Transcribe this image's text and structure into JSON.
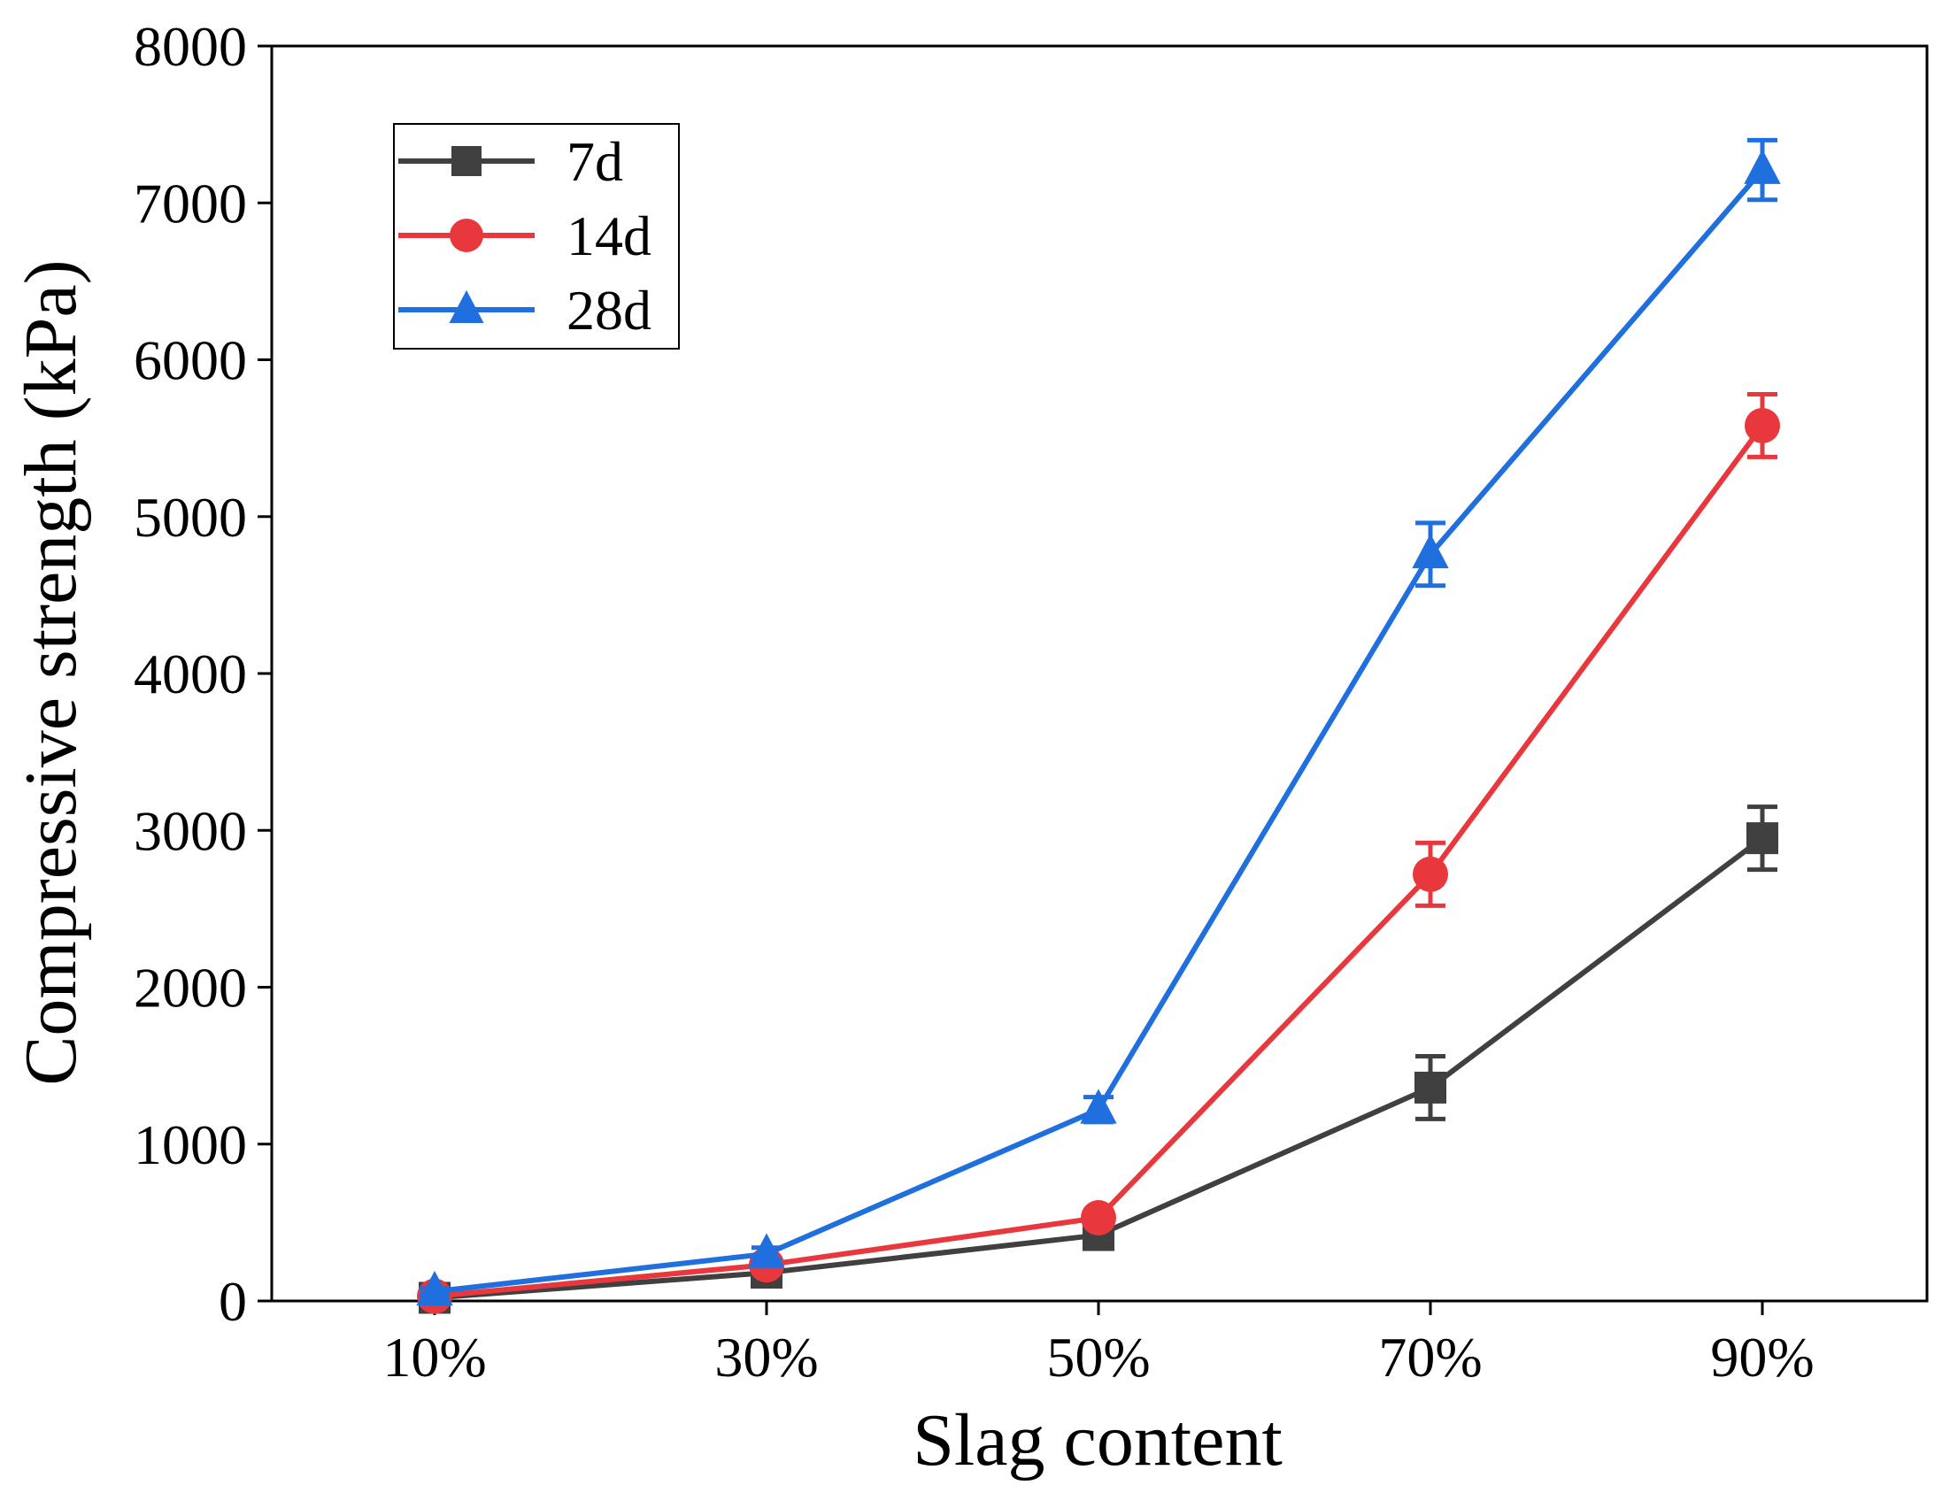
{
  "chart_data": {
    "type": "line",
    "title": "",
    "xlabel": "Slag content",
    "ylabel": "Compressive strength (kPa)",
    "categories": [
      "10%",
      "30%",
      "50%",
      "70%",
      "90%"
    ],
    "ylim": [
      0,
      8000
    ],
    "yticks": [
      0,
      1000,
      2000,
      3000,
      4000,
      5000,
      6000,
      7000,
      8000
    ],
    "grid": false,
    "legend_position": "top-left",
    "series": [
      {
        "name": "7d",
        "color": "#404040",
        "marker": "square",
        "values": [
          20,
          180,
          420,
          1360,
          2950
        ],
        "errors": [
          15,
          30,
          50,
          200,
          200
        ]
      },
      {
        "name": "14d",
        "color": "#e8383d",
        "marker": "circle",
        "values": [
          30,
          230,
          530,
          2720,
          5580
        ],
        "errors": [
          15,
          30,
          50,
          200,
          200
        ]
      },
      {
        "name": "28d",
        "color": "#1f6fdf",
        "marker": "triangle",
        "values": [
          60,
          300,
          1220,
          4760,
          7210
        ],
        "errors": [
          20,
          40,
          80,
          200,
          190
        ]
      }
    ]
  }
}
